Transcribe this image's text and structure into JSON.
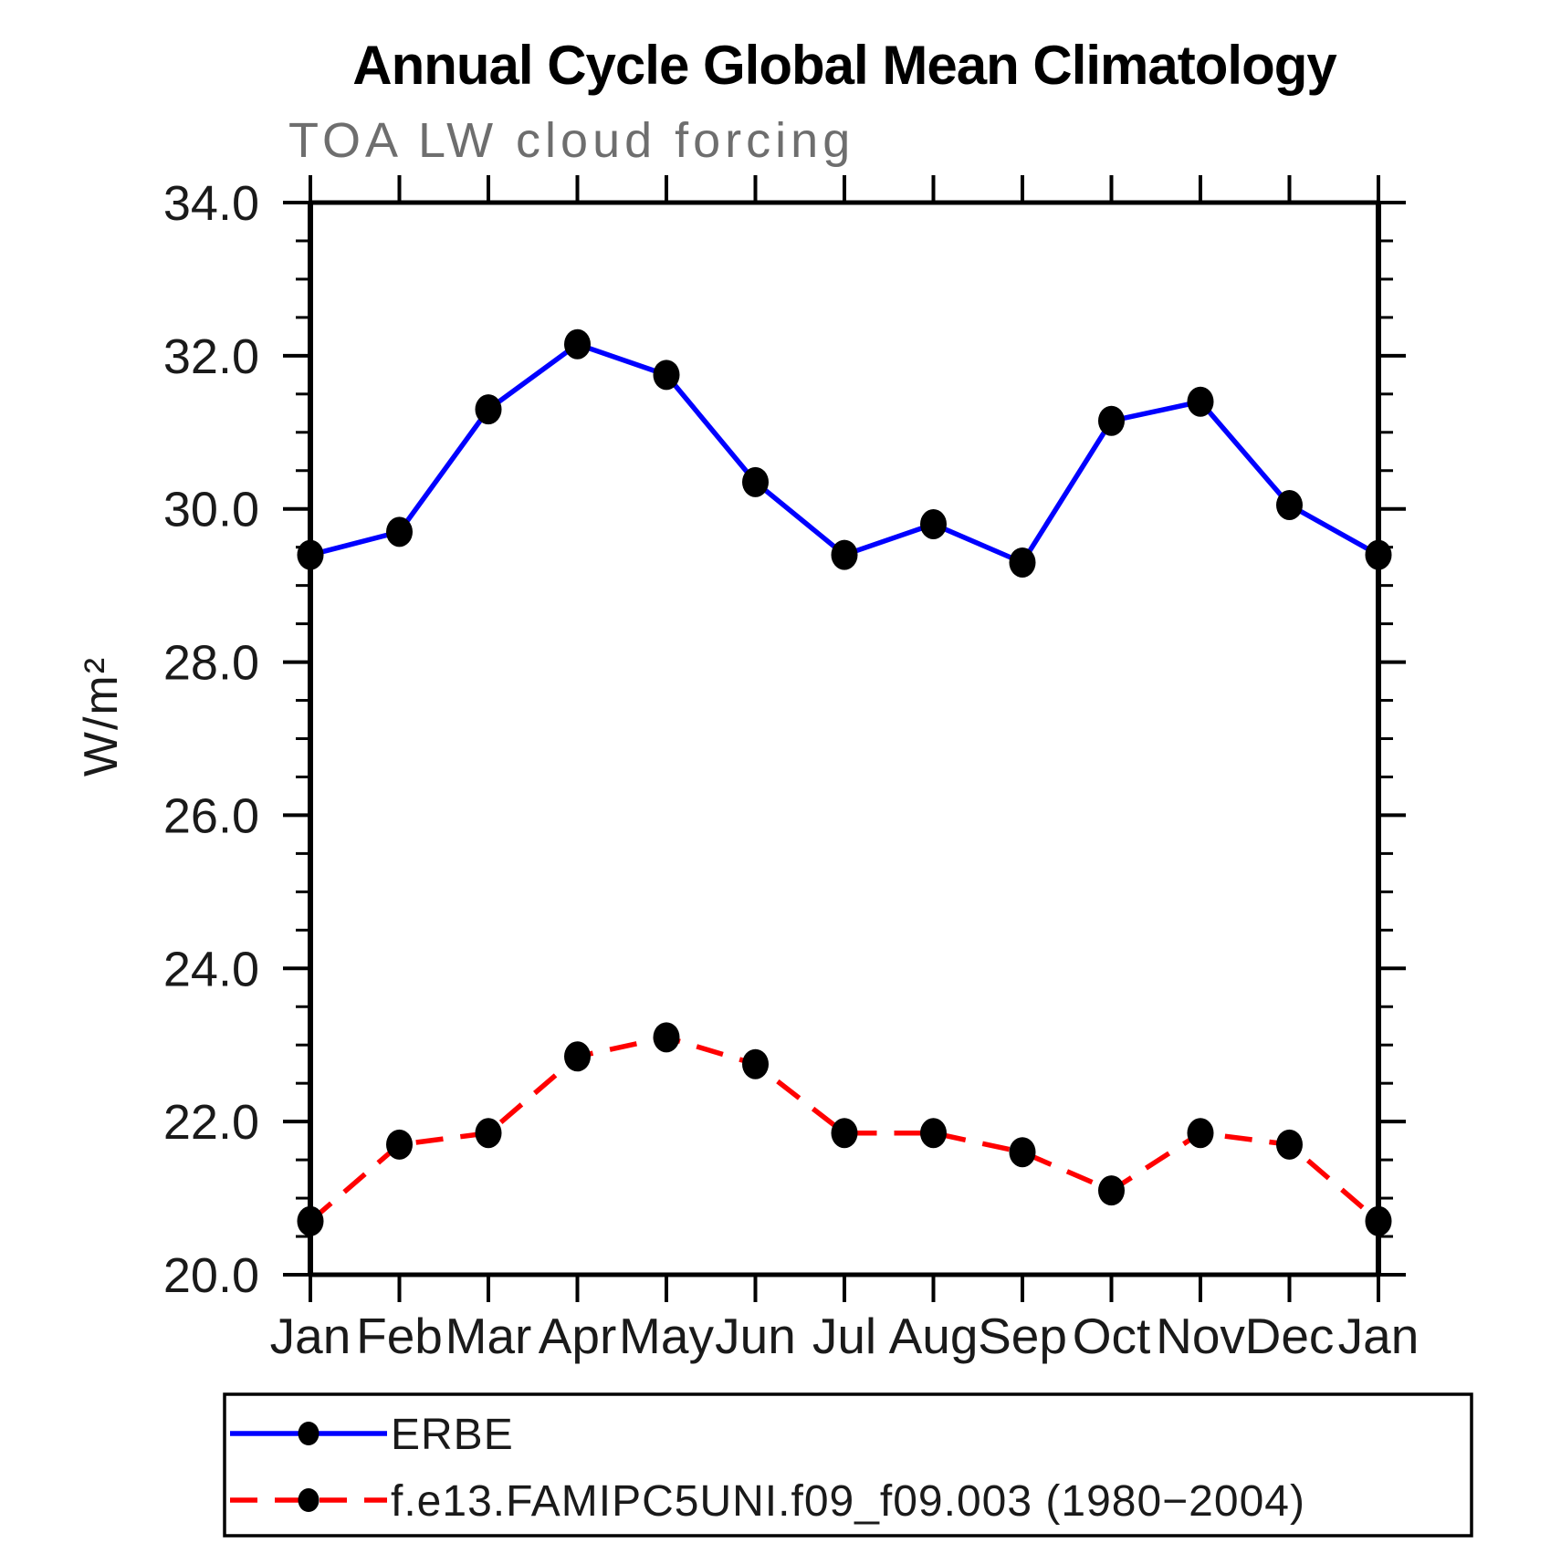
{
  "chart_data": {
    "type": "line",
    "title": "Annual Cycle Global Mean Climatology",
    "subtitle": "TOA LW cloud forcing",
    "xlabel": "",
    "ylabel": "W/m²",
    "categories": [
      "Jan",
      "Feb",
      "Mar",
      "Apr",
      "May",
      "Jun",
      "Jul",
      "Aug",
      "Sep",
      "Oct",
      "Nov",
      "Dec",
      "Jan"
    ],
    "ylim": [
      20.0,
      34.0
    ],
    "ytick_major_step": 2.0,
    "ytick_minor_step": 0.5,
    "ytick_labels": [
      "20.0",
      "22.0",
      "24.0",
      "26.0",
      "28.0",
      "30.0",
      "32.0",
      "34.0"
    ],
    "grid": false,
    "legend_position": "bottom",
    "marker_color": "#000000",
    "axis_color": "#000000",
    "series": [
      {
        "name": "ERBE",
        "color": "#0000ff",
        "line_style": "solid",
        "marker": "filled-circle",
        "values": [
          29.4,
          29.7,
          31.3,
          32.15,
          31.75,
          30.35,
          29.4,
          29.8,
          29.3,
          31.15,
          31.4,
          30.05,
          29.4
        ]
      },
      {
        "name": "f.e13.FAMIPC5UNI.f09_f09.003 (1980−2004)",
        "color": "#ff0000",
        "line_style": "dashed",
        "marker": "filled-circle",
        "values": [
          20.7,
          21.7,
          21.85,
          22.85,
          23.1,
          22.75,
          21.85,
          21.85,
          21.6,
          21.1,
          21.85,
          21.7,
          20.7
        ]
      }
    ]
  }
}
